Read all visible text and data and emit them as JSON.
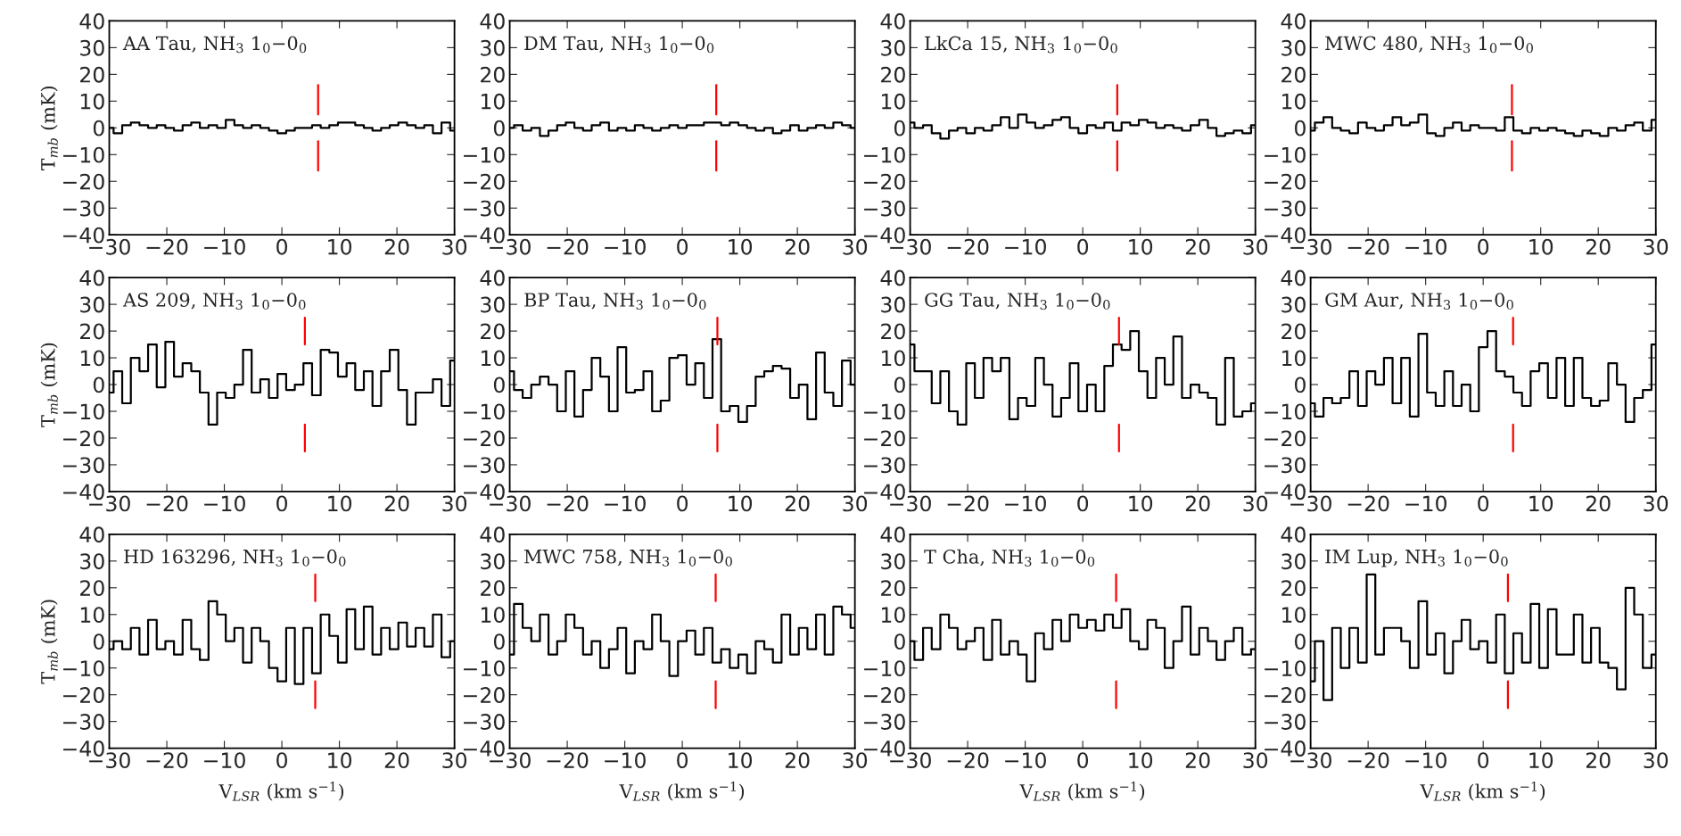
{
  "chart_data": [
    {
      "type": "step",
      "title": "AA Tau, NH$_{3}$ 1$_{0}$−0$_{0}$",
      "ylabel": "T$_{mb}$ (mK)",
      "xlim": [
        -30,
        30
      ],
      "xticks": [
        -30,
        -20,
        -10,
        0,
        10,
        20,
        30
      ],
      "ylim": [
        -40,
        40
      ],
      "yticks": [
        -40,
        -30,
        -20,
        -10,
        0,
        10,
        20,
        30,
        40
      ],
      "grid": false,
      "legend": false,
      "x": [
        -30,
        -28.5,
        -27,
        -25.5,
        -24,
        -22.5,
        -21,
        -19.5,
        -18,
        -16.5,
        -15,
        -13.5,
        -12,
        -10.5,
        -9,
        -7.5,
        -6,
        -4.5,
        -3,
        -1.5,
        0,
        1.5,
        3,
        4.5,
        6,
        7.5,
        9,
        10.5,
        12,
        13.5,
        15,
        16.5,
        18,
        19.5,
        21,
        22.5,
        24,
        25.5,
        27,
        28.5,
        30
      ],
      "series": [
        {
          "color": "#000000",
          "values": [
            0,
            -2,
            1,
            2,
            1,
            0,
            1,
            0,
            -1,
            1,
            2,
            0,
            1,
            0,
            3,
            1,
            0,
            1,
            0,
            -1,
            -2,
            -1,
            0,
            0,
            1,
            0,
            1,
            2,
            2,
            1,
            0,
            -1,
            0,
            1,
            2,
            1,
            0,
            1,
            -2,
            2,
            -1
          ]
        },
        {
          "type": "line",
          "color": "#ff0000",
          "x": [
            6.3,
            6.3
          ],
          "values": [
            -16,
            -5
          ]
        },
        {
          "type": "line",
          "color": "#ff0000",
          "x": [
            6.3,
            6.3
          ],
          "values": [
            5,
            16
          ]
        }
      ]
    },
    {
      "type": "step",
      "title": "DM Tau, NH$_{3}$ 1$_{0}$−0$_{0}$",
      "xlim": [
        -30,
        30
      ],
      "xticks": [
        -30,
        -20,
        -10,
        0,
        10,
        20,
        30
      ],
      "ylim": [
        -40,
        40
      ],
      "yticks": [
        -40,
        -30,
        -20,
        -10,
        0,
        10,
        20,
        30,
        40
      ],
      "grid": false,
      "legend": false,
      "x": [
        -30,
        -28.5,
        -27,
        -25.5,
        -24,
        -22.5,
        -21,
        -19.5,
        -18,
        -16.5,
        -15,
        -13.5,
        -12,
        -10.5,
        -9,
        -7.5,
        -6,
        -4.5,
        -3,
        -1.5,
        0,
        1.5,
        3,
        4.5,
        6,
        7.5,
        9,
        10.5,
        12,
        13.5,
        15,
        16.5,
        18,
        19.5,
        21,
        22.5,
        24,
        25.5,
        27,
        28.5,
        30
      ],
      "series": [
        {
          "color": "#000000",
          "values": [
            0,
            1,
            -1,
            0,
            -3,
            -1,
            1,
            2,
            0,
            -1,
            1,
            2,
            -1,
            0,
            -1,
            1,
            0,
            -1,
            0,
            1,
            0,
            1,
            1,
            2,
            2,
            1,
            2,
            1,
            0,
            -1,
            0,
            -2,
            -1,
            1,
            -1,
            0,
            1,
            0,
            2,
            1,
            0
          ]
        },
        {
          "type": "line",
          "color": "#ff0000",
          "x": [
            5.9,
            5.9
          ],
          "values": [
            -16,
            -5
          ]
        },
        {
          "type": "line",
          "color": "#ff0000",
          "x": [
            5.9,
            5.9
          ],
          "values": [
            5,
            16
          ]
        }
      ]
    },
    {
      "type": "step",
      "title": "LkCa 15, NH$_{3}$ 1$_{0}$−0$_{0}$",
      "xlim": [
        -30,
        30
      ],
      "xticks": [
        -30,
        -20,
        -10,
        0,
        10,
        20,
        30
      ],
      "ylim": [
        -40,
        40
      ],
      "yticks": [
        -40,
        -30,
        -20,
        -10,
        0,
        10,
        20,
        30,
        40
      ],
      "grid": false,
      "legend": false,
      "x": [
        -30,
        -28.5,
        -27,
        -25.5,
        -24,
        -22.5,
        -21,
        -19.5,
        -18,
        -16.5,
        -15,
        -13.5,
        -12,
        -10.5,
        -9,
        -7.5,
        -6,
        -4.5,
        -3,
        -1.5,
        0,
        1.5,
        3,
        4.5,
        6,
        7.5,
        9,
        10.5,
        12,
        13.5,
        15,
        16.5,
        18,
        19.5,
        21,
        22.5,
        24,
        25.5,
        27,
        28.5,
        30
      ],
      "series": [
        {
          "color": "#000000",
          "values": [
            2,
            0,
            1,
            -2,
            -4,
            -1,
            0,
            -2,
            0,
            -1,
            1,
            4,
            0,
            5,
            2,
            0,
            1,
            3,
            4,
            0,
            -2,
            1,
            0,
            2,
            -1,
            2,
            1,
            3,
            2,
            0,
            1,
            0,
            -1,
            1,
            3,
            0,
            -3,
            -2,
            -1,
            -2,
            1
          ]
        },
        {
          "type": "line",
          "color": "#ff0000",
          "x": [
            6.0,
            6.0
          ],
          "values": [
            -16,
            -5
          ]
        },
        {
          "type": "line",
          "color": "#ff0000",
          "x": [
            6.0,
            6.0
          ],
          "values": [
            5,
            16
          ]
        }
      ]
    },
    {
      "type": "step",
      "title": "MWC 480, NH$_{3}$ 1$_{0}$−0$_{0}$",
      "xlim": [
        -30,
        30
      ],
      "xticks": [
        -30,
        -20,
        -10,
        0,
        10,
        20,
        30
      ],
      "ylim": [
        -40,
        40
      ],
      "yticks": [
        -40,
        -30,
        -20,
        -10,
        0,
        10,
        20,
        30,
        40
      ],
      "grid": false,
      "legend": false,
      "x": [
        -30,
        -28.5,
        -27,
        -25.5,
        -24,
        -22.5,
        -21,
        -19.5,
        -18,
        -16.5,
        -15,
        -13.5,
        -12,
        -10.5,
        -9,
        -7.5,
        -6,
        -4.5,
        -3,
        -1.5,
        0,
        1.5,
        3,
        4.5,
        6,
        7.5,
        9,
        10.5,
        12,
        13.5,
        15,
        16.5,
        18,
        19.5,
        21,
        22.5,
        24,
        25.5,
        27,
        28.5,
        30
      ],
      "series": [
        {
          "color": "#000000",
          "values": [
            -1,
            2,
            4,
            0,
            -1,
            -2,
            2,
            0,
            -1,
            1,
            4,
            1,
            2,
            5,
            -2,
            -3,
            0,
            2,
            -1,
            1,
            0,
            0,
            -1,
            4,
            -1,
            -2,
            0,
            -1,
            0,
            -1,
            -2,
            -3,
            -1,
            -2,
            -3,
            0,
            -1,
            1,
            2,
            -1,
            3
          ]
        },
        {
          "type": "line",
          "color": "#ff0000",
          "x": [
            5.0,
            5.0
          ],
          "values": [
            -16,
            -5
          ]
        },
        {
          "type": "line",
          "color": "#ff0000",
          "x": [
            5.0,
            5.0
          ],
          "values": [
            5,
            16
          ]
        }
      ]
    },
    {
      "type": "step",
      "title": "AS 209, NH$_{3}$ 1$_{0}$−0$_{0}$",
      "ylabel": "T$_{mb}$ (mK)",
      "xlim": [
        -30,
        30
      ],
      "xticks": [
        -30,
        -20,
        -10,
        0,
        10,
        20,
        30
      ],
      "ylim": [
        -40,
        40
      ],
      "yticks": [
        -40,
        -30,
        -20,
        -10,
        0,
        10,
        20,
        30,
        40
      ],
      "grid": false,
      "legend": false,
      "x": [
        -30,
        -28.5,
        -27,
        -25.5,
        -24,
        -22.5,
        -21,
        -19.5,
        -18,
        -16.5,
        -15,
        -13.5,
        -12,
        -10.5,
        -9,
        -7.5,
        -6,
        -4.5,
        -3,
        -1.5,
        0,
        1.5,
        3,
        4.5,
        6,
        7.5,
        9,
        10.5,
        12,
        13.5,
        15,
        16.5,
        18,
        19.5,
        21,
        22.5,
        24,
        25.5,
        27,
        28.5,
        30
      ],
      "series": [
        {
          "color": "#000000",
          "values": [
            -3,
            5,
            -7,
            10,
            5,
            15,
            -1,
            16,
            3,
            8,
            5,
            -3,
            -15,
            -3,
            -5,
            0,
            13,
            -3,
            2,
            -5,
            4,
            -2,
            0,
            8,
            -4,
            13,
            12,
            3,
            8,
            -2,
            5,
            -8,
            5,
            13,
            -2,
            -15,
            -3,
            -3,
            2,
            -8,
            9
          ]
        },
        {
          "type": "line",
          "color": "#ff0000",
          "x": [
            4.0,
            4.0
          ],
          "values": [
            -25,
            -15
          ]
        },
        {
          "type": "line",
          "color": "#ff0000",
          "x": [
            4.0,
            4.0
          ],
          "values": [
            15,
            25
          ]
        }
      ]
    },
    {
      "type": "step",
      "title": "BP Tau, NH$_{3}$ 1$_{0}$−0$_{0}$",
      "xlim": [
        -30,
        30
      ],
      "xticks": [
        -30,
        -20,
        -10,
        0,
        10,
        20,
        30
      ],
      "ylim": [
        -40,
        40
      ],
      "yticks": [
        -40,
        -30,
        -20,
        -10,
        0,
        10,
        20,
        30,
        40
      ],
      "grid": false,
      "legend": false,
      "x": [
        -30,
        -28.5,
        -27,
        -25.5,
        -24,
        -22.5,
        -21,
        -19.5,
        -18,
        -16.5,
        -15,
        -13.5,
        -12,
        -10.5,
        -9,
        -7.5,
        -6,
        -4.5,
        -3,
        -1.5,
        0,
        1.5,
        3,
        4.5,
        6,
        7.5,
        9,
        10.5,
        12,
        13.5,
        15,
        16.5,
        18,
        19.5,
        21,
        22.5,
        24,
        25.5,
        27,
        28.5,
        30
      ],
      "series": [
        {
          "color": "#000000",
          "values": [
            5,
            -2,
            -5,
            0,
            3,
            0,
            -10,
            5,
            -12,
            -2,
            10,
            3,
            -10,
            14,
            -3,
            -2,
            5,
            -10,
            -6,
            10,
            11,
            0,
            8,
            -5,
            17,
            -10,
            -8,
            -14,
            -8,
            3,
            5,
            7,
            6,
            -5,
            0,
            -13,
            12,
            -3,
            -8,
            9,
            0
          ]
        },
        {
          "type": "line",
          "color": "#ff0000",
          "x": [
            6.1,
            6.1
          ],
          "values": [
            -25,
            -15
          ]
        },
        {
          "type": "line",
          "color": "#ff0000",
          "x": [
            6.1,
            6.1
          ],
          "values": [
            15,
            25
          ]
        }
      ]
    },
    {
      "type": "step",
      "title": "GG Tau, NH$_{3}$ 1$_{0}$−0$_{0}$",
      "xlim": [
        -30,
        30
      ],
      "xticks": [
        -30,
        -20,
        -10,
        0,
        10,
        20,
        30
      ],
      "ylim": [
        -40,
        40
      ],
      "yticks": [
        -40,
        -30,
        -20,
        -10,
        0,
        10,
        20,
        30,
        40
      ],
      "grid": false,
      "legend": false,
      "x": [
        -30,
        -28.5,
        -27,
        -25.5,
        -24,
        -22.5,
        -21,
        -19.5,
        -18,
        -16.5,
        -15,
        -13.5,
        -12,
        -10.5,
        -9,
        -7.5,
        -6,
        -4.5,
        -3,
        -1.5,
        0,
        1.5,
        3,
        4.5,
        6,
        7.5,
        9,
        10.5,
        12,
        13.5,
        15,
        16.5,
        18,
        19.5,
        21,
        22.5,
        24,
        25.5,
        27,
        28.5,
        30
      ],
      "series": [
        {
          "color": "#000000",
          "values": [
            15,
            5,
            5,
            -7,
            5,
            -10,
            -15,
            8,
            -5,
            10,
            5,
            10,
            -13,
            -5,
            -8,
            10,
            0,
            -12,
            -5,
            8,
            -10,
            0,
            -10,
            7,
            15,
            13,
            20,
            5,
            -5,
            10,
            0,
            18,
            -5,
            0,
            -3,
            -5,
            -15,
            10,
            -12,
            -10,
            -7
          ]
        },
        {
          "type": "line",
          "color": "#ff0000",
          "x": [
            6.3,
            6.3
          ],
          "values": [
            -25,
            -15
          ]
        },
        {
          "type": "line",
          "color": "#ff0000",
          "x": [
            6.3,
            6.3
          ],
          "values": [
            15,
            25
          ]
        }
      ]
    },
    {
      "type": "step",
      "title": "GM Aur, NH$_{3}$ 1$_{0}$−0$_{0}$",
      "xlim": [
        -30,
        30
      ],
      "xticks": [
        -30,
        -20,
        -10,
        0,
        10,
        20,
        30
      ],
      "ylim": [
        -40,
        40
      ],
      "yticks": [
        -40,
        -30,
        -20,
        -10,
        0,
        10,
        20,
        30,
        40
      ],
      "grid": false,
      "legend": false,
      "x": [
        -30,
        -28.5,
        -27,
        -25.5,
        -24,
        -22.5,
        -21,
        -19.5,
        -18,
        -16.5,
        -15,
        -13.5,
        -12,
        -10.5,
        -9,
        -7.5,
        -6,
        -4.5,
        -3,
        -1.5,
        0,
        1.5,
        3,
        4.5,
        6,
        7.5,
        9,
        10.5,
        12,
        13.5,
        15,
        16.5,
        18,
        19.5,
        21,
        22.5,
        24,
        25.5,
        27,
        28.5,
        30
      ],
      "series": [
        {
          "color": "#000000",
          "values": [
            -7,
            -12,
            -5,
            -7,
            -5,
            5,
            -8,
            5,
            0,
            10,
            -7,
            10,
            -12,
            19,
            -3,
            -8,
            5,
            -8,
            0,
            -10,
            14,
            20,
            5,
            3,
            -3,
            -8,
            5,
            8,
            -5,
            10,
            -8,
            10,
            -5,
            -8,
            -6,
            8,
            0,
            -14,
            -5,
            -2,
            15
          ]
        },
        {
          "type": "line",
          "color": "#ff0000",
          "x": [
            5.2,
            5.2
          ],
          "values": [
            -25,
            -15
          ]
        },
        {
          "type": "line",
          "color": "#ff0000",
          "x": [
            5.2,
            5.2
          ],
          "values": [
            15,
            25
          ]
        }
      ]
    },
    {
      "type": "step",
      "title": "HD 163296, NH$_{3}$ 1$_{0}$−0$_{0}$",
      "ylabel": "T$_{mb}$ (mK)",
      "xlabel": "V$_{LSR}$ (km s$^{−1}$)",
      "xlim": [
        -30,
        30
      ],
      "xticks": [
        -30,
        -20,
        -10,
        0,
        10,
        20,
        30
      ],
      "ylim": [
        -40,
        40
      ],
      "yticks": [
        -40,
        -30,
        -20,
        -10,
        0,
        10,
        20,
        30,
        40
      ],
      "grid": false,
      "legend": false,
      "x": [
        -30,
        -28.5,
        -27,
        -25.5,
        -24,
        -22.5,
        -21,
        -19.5,
        -18,
        -16.5,
        -15,
        -13.5,
        -12,
        -10.5,
        -9,
        -7.5,
        -6,
        -4.5,
        -3,
        -1.5,
        0,
        1.5,
        3,
        4.5,
        6,
        7.5,
        9,
        10.5,
        12,
        13.5,
        15,
        16.5,
        18,
        19.5,
        21,
        22.5,
        24,
        25.5,
        27,
        28.5,
        30
      ],
      "series": [
        {
          "color": "#000000",
          "values": [
            -3,
            0,
            -3,
            5,
            -5,
            8,
            -3,
            0,
            -5,
            8,
            -3,
            -7,
            15,
            10,
            0,
            5,
            -8,
            5,
            0,
            -10,
            -15,
            5,
            -16,
            5,
            -12,
            10,
            2,
            -8,
            12,
            -3,
            13,
            -5,
            5,
            -3,
            7,
            -2,
            5,
            -2,
            10,
            -6,
            0
          ]
        },
        {
          "type": "line",
          "color": "#ff0000",
          "x": [
            5.8,
            5.8
          ],
          "values": [
            -25,
            -15
          ]
        },
        {
          "type": "line",
          "color": "#ff0000",
          "x": [
            5.8,
            5.8
          ],
          "values": [
            15,
            25
          ]
        }
      ]
    },
    {
      "type": "step",
      "title": "MWC 758, NH$_{3}$ 1$_{0}$−0$_{0}$",
      "xlabel": "V$_{LSR}$ (km s$^{−1}$)",
      "xlim": [
        -30,
        30
      ],
      "xticks": [
        -30,
        -20,
        -10,
        0,
        10,
        20,
        30
      ],
      "ylim": [
        -40,
        40
      ],
      "yticks": [
        -40,
        -30,
        -20,
        -10,
        0,
        10,
        20,
        30,
        40
      ],
      "grid": false,
      "legend": false,
      "x": [
        -30,
        -28.5,
        -27,
        -25.5,
        -24,
        -22.5,
        -21,
        -19.5,
        -18,
        -16.5,
        -15,
        -13.5,
        -12,
        -10.5,
        -9,
        -7.5,
        -6,
        -4.5,
        -3,
        -1.5,
        0,
        1.5,
        3,
        4.5,
        6,
        7.5,
        9,
        10.5,
        12,
        13.5,
        15,
        16.5,
        18,
        19.5,
        21,
        22.5,
        24,
        25.5,
        27,
        28.5,
        30
      ],
      "series": [
        {
          "color": "#000000",
          "values": [
            -5,
            14,
            5,
            0,
            10,
            -5,
            0,
            10,
            5,
            -5,
            0,
            -10,
            -3,
            5,
            -12,
            0,
            -3,
            10,
            0,
            -13,
            0,
            4,
            -5,
            5,
            -8,
            -3,
            -10,
            -5,
            -12,
            0,
            -3,
            -8,
            10,
            -5,
            5,
            -3,
            10,
            -5,
            13,
            10,
            5
          ]
        },
        {
          "type": "line",
          "color": "#ff0000",
          "x": [
            5.8,
            5.8
          ],
          "values": [
            -25,
            -15
          ]
        },
        {
          "type": "line",
          "color": "#ff0000",
          "x": [
            5.8,
            5.8
          ],
          "values": [
            15,
            25
          ]
        }
      ]
    },
    {
      "type": "step",
      "title": "T Cha, NH$_{3}$ 1$_{0}$−0$_{0}$",
      "xlabel": "V$_{LSR}$ (km s$^{−1}$)",
      "xlim": [
        -30,
        30
      ],
      "xticks": [
        -30,
        -20,
        -10,
        0,
        10,
        20,
        30
      ],
      "ylim": [
        -40,
        40
      ],
      "yticks": [
        -40,
        -30,
        -20,
        -10,
        0,
        10,
        20,
        30,
        40
      ],
      "grid": false,
      "legend": false,
      "x": [
        -30,
        -28.5,
        -27,
        -25.5,
        -24,
        -22.5,
        -21,
        -19.5,
        -18,
        -16.5,
        -15,
        -13.5,
        -12,
        -10.5,
        -9,
        -7.5,
        -6,
        -4.5,
        -3,
        -1.5,
        0,
        1.5,
        3,
        4.5,
        6,
        7.5,
        9,
        10.5,
        12,
        13.5,
        15,
        16.5,
        18,
        19.5,
        21,
        22.5,
        24,
        25.5,
        27,
        28.5,
        30
      ],
      "series": [
        {
          "color": "#000000",
          "values": [
            0,
            -7,
            5,
            -3,
            10,
            5,
            -3,
            0,
            5,
            -7,
            8,
            -5,
            0,
            -5,
            -15,
            3,
            -3,
            8,
            0,
            10,
            5,
            8,
            4,
            10,
            5,
            12,
            0,
            -3,
            8,
            5,
            -10,
            0,
            13,
            -5,
            5,
            0,
            -7,
            0,
            5,
            -5,
            -3
          ]
        },
        {
          "type": "line",
          "color": "#ff0000",
          "x": [
            5.8,
            5.8
          ],
          "values": [
            -25,
            -15
          ]
        },
        {
          "type": "line",
          "color": "#ff0000",
          "x": [
            5.8,
            5.8
          ],
          "values": [
            15,
            25
          ]
        }
      ]
    },
    {
      "type": "step",
      "title": "IM Lup, NH$_{3}$ 1$_{0}$−0$_{0}$",
      "xlabel": "V$_{LSR}$ (km s$^{−1}$)",
      "xlim": [
        -30,
        30
      ],
      "xticks": [
        -30,
        -20,
        -10,
        0,
        10,
        20,
        30
      ],
      "ylim": [
        -40,
        40
      ],
      "yticks": [
        -40,
        -30,
        -20,
        -10,
        0,
        10,
        20,
        30,
        40
      ],
      "grid": false,
      "legend": false,
      "x": [
        -30,
        -28.5,
        -27,
        -25.5,
        -24,
        -22.5,
        -21,
        -19.5,
        -18,
        -16.5,
        -15,
        -13.5,
        -12,
        -10.5,
        -9,
        -7.5,
        -6,
        -4.5,
        -3,
        -1.5,
        0,
        1.5,
        3,
        4.5,
        6,
        7.5,
        9,
        10.5,
        12,
        13.5,
        15,
        16.5,
        18,
        19.5,
        21,
        22.5,
        24,
        25.5,
        27,
        28.5,
        30
      ],
      "series": [
        {
          "color": "#000000",
          "values": [
            -15,
            0,
            -22,
            5,
            -10,
            5,
            -8,
            25,
            -5,
            5,
            5,
            0,
            -10,
            15,
            -5,
            3,
            -12,
            0,
            8,
            -3,
            0,
            -8,
            10,
            -12,
            3,
            -8,
            14,
            -10,
            12,
            -5,
            -5,
            10,
            -8,
            5,
            -8,
            -10,
            -18,
            20,
            10,
            -10,
            -5
          ]
        },
        {
          "type": "line",
          "color": "#ff0000",
          "x": [
            4.3,
            4.3
          ],
          "values": [
            -25,
            -15
          ]
        },
        {
          "type": "line",
          "color": "#ff0000",
          "x": [
            4.3,
            4.3
          ],
          "values": [
            15,
            25
          ]
        }
      ]
    }
  ]
}
